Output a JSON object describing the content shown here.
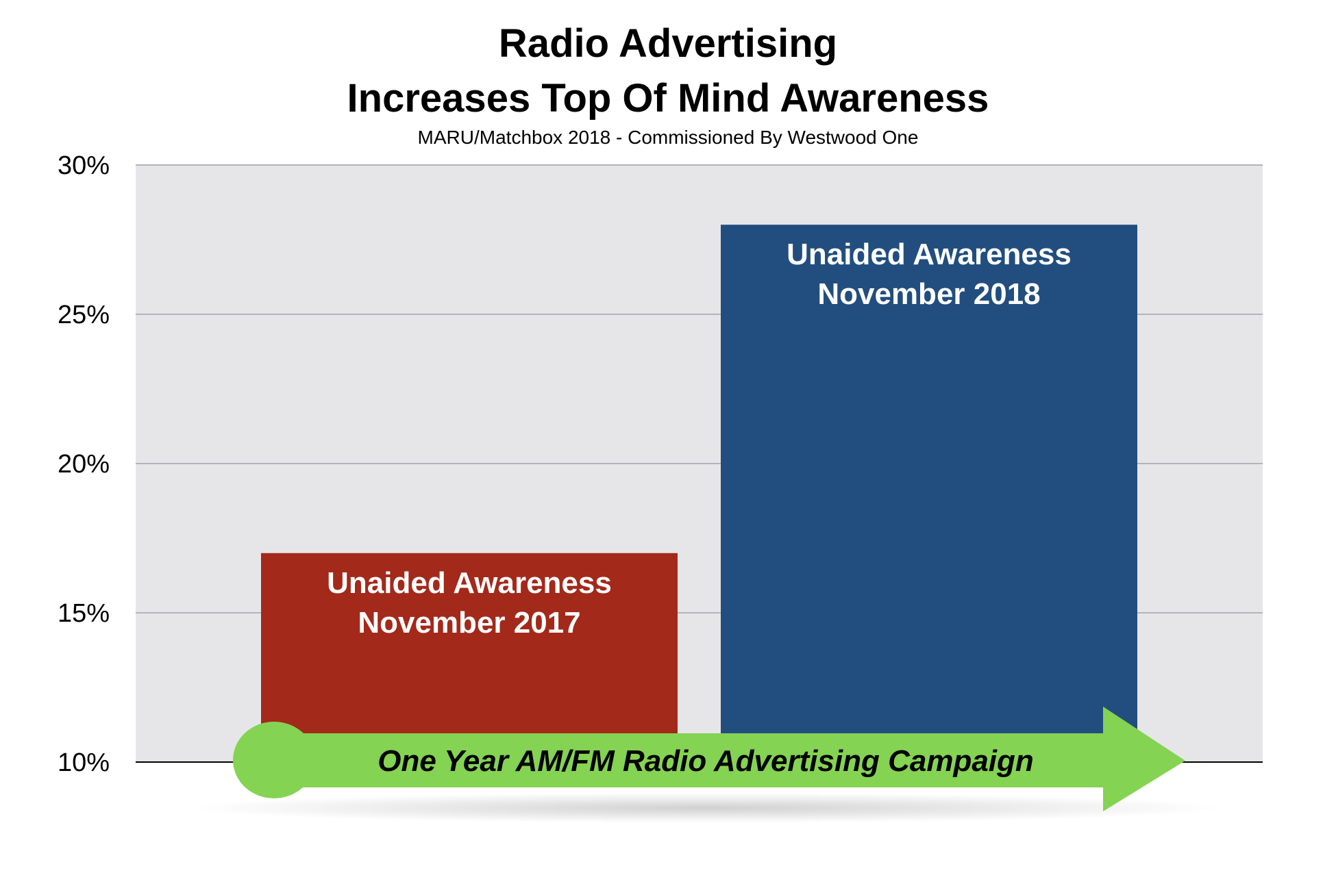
{
  "title_lines": [
    "Radio Advertising",
    "Increases Top Of Mind Awareness"
  ],
  "subtitle": "MARU/Matchbox 2018 - Commissioned By Westwood One",
  "chart_data": {
    "type": "bar",
    "categories": [
      "Unaided Awareness November 2017",
      "Unaided Awareness November 2018"
    ],
    "values": [
      17,
      28
    ],
    "bar_labels": [
      [
        "Unaided Awareness",
        "November 2017"
      ],
      [
        "Unaided Awareness",
        "November 2018"
      ]
    ],
    "bar_colors": [
      "#a3291a",
      "#214e7e"
    ],
    "ylim": [
      10,
      30
    ],
    "yticks": [
      10,
      15,
      20,
      25,
      30
    ],
    "ytick_labels": [
      "10%",
      "15%",
      "20%",
      "25%",
      "30%"
    ],
    "grid": true,
    "plot_background": "#e6e6e9",
    "annotation": {
      "text": "One Year AM/FM Radio Advertising Campaign",
      "shape": "arrow",
      "color": "#84d352"
    }
  }
}
